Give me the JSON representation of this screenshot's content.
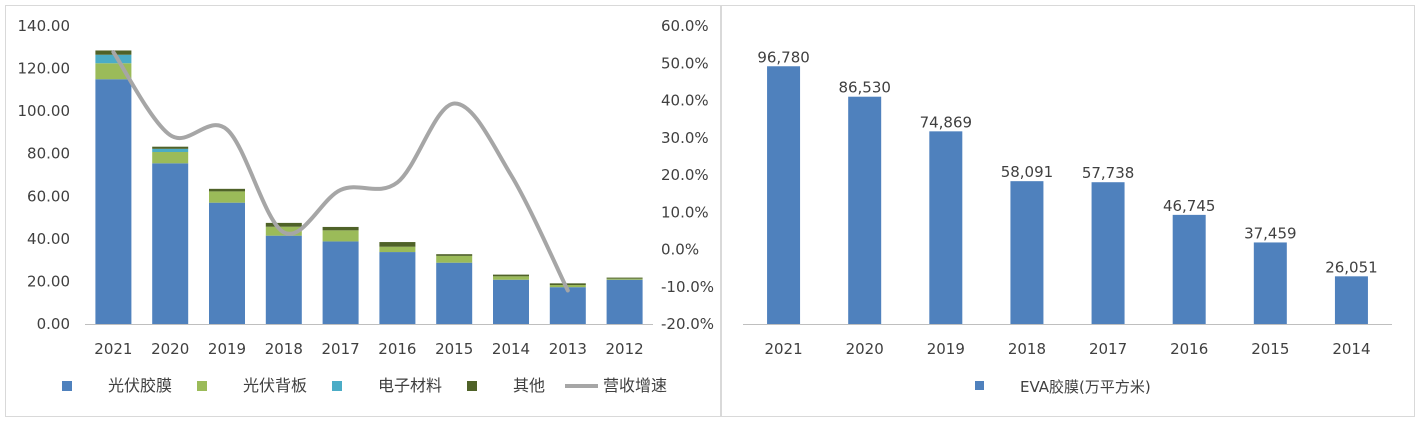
{
  "chart_data": [
    {
      "type": "bar",
      "stacked": true,
      "categories": [
        "2021",
        "2020",
        "2019",
        "2018",
        "2017",
        "2016",
        "2015",
        "2014",
        "2013",
        "2012"
      ],
      "series": [
        {
          "name": "光伏胶膜",
          "color": "#4F81BD",
          "values": [
            115,
            75.5,
            57,
            41.5,
            38.8,
            33.8,
            28.8,
            20.8,
            17.3,
            20.8
          ]
        },
        {
          "name": "光伏背板",
          "color": "#9BBB59",
          "values": [
            7.5,
            5.3,
            5.3,
            4.2,
            5.2,
            2.5,
            3.2,
            1.6,
            1.0,
            0.5
          ]
        },
        {
          "name": "电子材料",
          "color": "#4BACC6",
          "values": [
            4.0,
            1.5,
            0,
            0,
            0,
            0,
            0,
            0,
            0,
            0
          ]
        },
        {
          "name": "其他",
          "color": "#4F6228",
          "values": [
            2.0,
            1.0,
            1.2,
            1.8,
            1.6,
            2.2,
            0.8,
            0.8,
            0.8,
            0.5
          ]
        }
      ],
      "line_series": {
        "name": "营收增速",
        "color": "#A6A6A6",
        "axis": "right",
        "values": [
          53.0,
          30.7,
          32.2,
          4.6,
          16.0,
          18.0,
          39.2,
          20.0,
          -11.0
        ]
      },
      "yticks_left": [
        "140.00",
        "120.00",
        "100.00",
        "80.00",
        "60.00",
        "40.00",
        "20.00",
        "0.00"
      ],
      "yticks_right": [
        "60.0%",
        "50.0%",
        "40.0%",
        "30.0%",
        "20.0%",
        "10.0%",
        "0.0%",
        "-10.0%",
        "-20.0%"
      ],
      "ylim_left": [
        0,
        140
      ],
      "ylim_right": [
        -20,
        60
      ],
      "legend": "bottom"
    },
    {
      "type": "bar",
      "categories": [
        "2021",
        "2020",
        "2019",
        "2018",
        "2017",
        "2016",
        "2015",
        "2014"
      ],
      "series": [
        {
          "name": "EVA胶膜(万平方米)",
          "color": "#4F81BD",
          "values": [
            96780,
            86530,
            74869,
            58091,
            57738,
            46745,
            37459,
            26051
          ]
        }
      ],
      "labels": [
        "96,780",
        "86,530",
        "74,869",
        "58,091",
        "57,738",
        "46,745",
        "37,459",
        "26,051"
      ],
      "legend": "bottom"
    }
  ]
}
